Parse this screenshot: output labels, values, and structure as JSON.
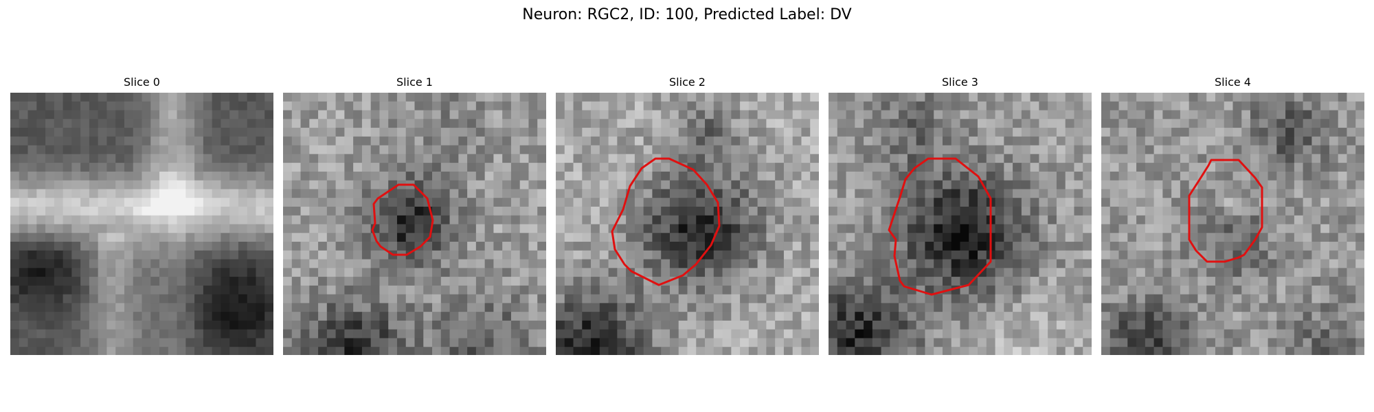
{
  "figure": {
    "suptitle": "Neuron: RGC2, ID: 100, Predicted Label: DV",
    "background_color": "#ffffff",
    "contour_color": "#e01010",
    "colormap": "gray"
  },
  "panels": [
    {
      "title": "Slice 0",
      "has_contour": false
    },
    {
      "title": "Slice 1",
      "has_contour": true
    },
    {
      "title": "Slice 2",
      "has_contour": true
    },
    {
      "title": "Slice 3",
      "has_contour": true
    },
    {
      "title": "Slice 4",
      "has_contour": true
    }
  ]
}
